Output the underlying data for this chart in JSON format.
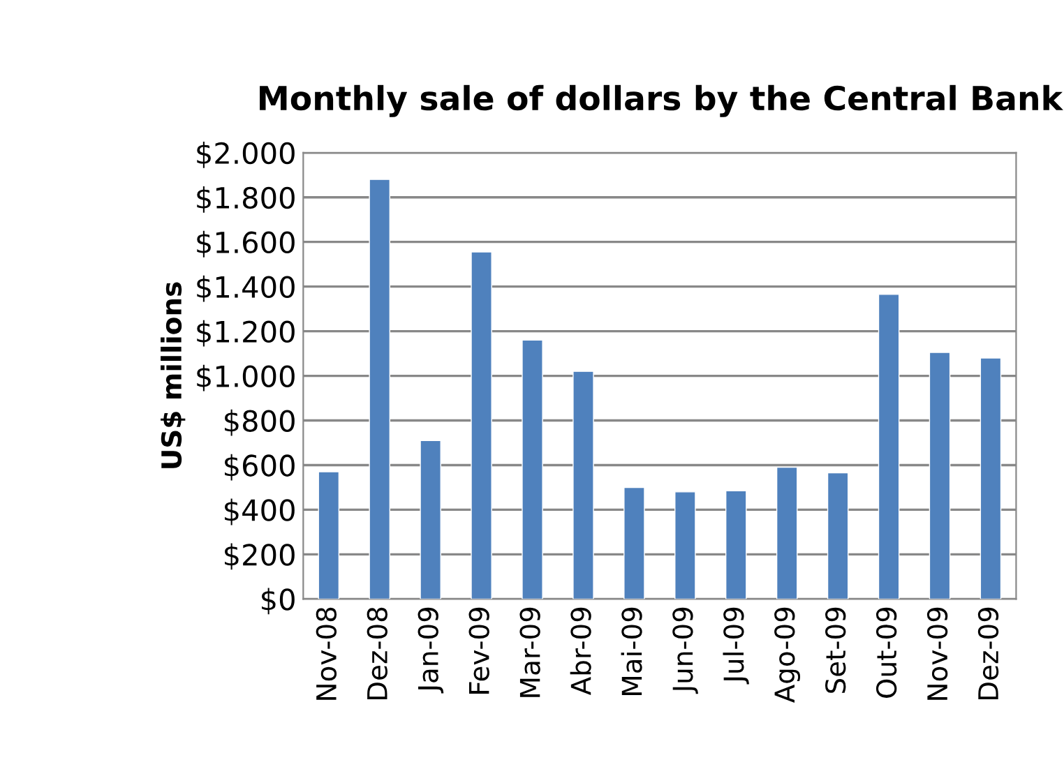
{
  "chart_data": {
    "type": "bar",
    "title": "Monthly sale of dollars by the Central Bank",
    "ylabel": "US$ millions",
    "categories": [
      "Nov-08",
      "Dez-08",
      "Jan-09",
      "Fev-09",
      "Mar-09",
      "Abr-09",
      "Mai-09",
      "Jun-09",
      "Jul-09",
      "Ago-09",
      "Set-09",
      "Out-09",
      "Nov-09",
      "Dez-09"
    ],
    "values": [
      570,
      1880,
      710,
      1555,
      1160,
      1020,
      500,
      480,
      485,
      590,
      565,
      1365,
      1105,
      1080
    ],
    "color": "#4f81bd",
    "ylim": [
      0,
      2000
    ],
    "yticks": [
      {
        "value": 0,
        "label": "$0"
      },
      {
        "value": 200,
        "label": "$200"
      },
      {
        "value": 400,
        "label": "$400"
      },
      {
        "value": 600,
        "label": "$600"
      },
      {
        "value": 800,
        "label": "$800"
      },
      {
        "value": 1000,
        "label": "$1.000"
      },
      {
        "value": 1200,
        "label": "$1.200"
      },
      {
        "value": 1400,
        "label": "$1.400"
      },
      {
        "value": 1600,
        "label": "$1.600"
      },
      {
        "value": 1800,
        "label": "$1.800"
      },
      {
        "value": 2000,
        "label": "$2.000"
      }
    ],
    "grid": "y",
    "legend": false
  }
}
